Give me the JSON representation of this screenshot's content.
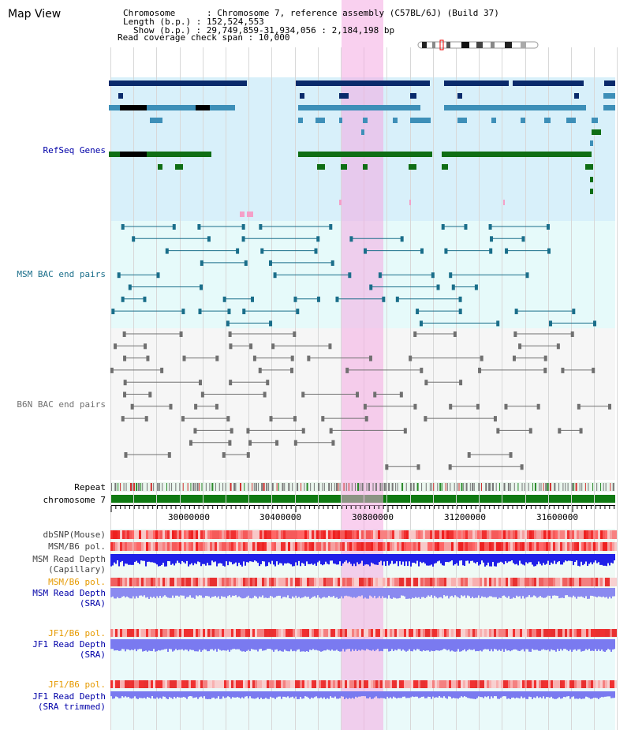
{
  "title": "Map View",
  "header": {
    "chromosome_line": "Chromosome      : Chromosome 7, reference assembly (C57BL/6J) (Build 37)",
    "length_line": "Length (b.p.) : 152,524,553",
    "show_line": "Show (b.p.) : 29,749,859-31,934,056 : 2,184,198 bp",
    "coverage_line": "Read coverage check span : 10,000"
  },
  "tracks": {
    "refseq": "RefSeq Genes",
    "msm_bac": "MSM BAC end pairs",
    "b6n_bac": "B6N BAC end pairs",
    "repeat": "Repeat",
    "chromosome": "chromosome 7",
    "dbsnp": "dbSNP(Mouse)",
    "msm_pol": "MSM/B6 pol.",
    "msm_depth_cap_1": "MSM Read Depth",
    "msm_depth_cap_2": "(Capillary)",
    "msm_pol2": "MSM/B6 pol.",
    "msm_depth_sra_1": "MSM Read Depth",
    "msm_depth_sra_2": "(SRA)",
    "jf1_pol": "JF1/B6 pol.",
    "jf1_depth_1": "JF1 Read Depth",
    "jf1_depth_2": "(SRA)",
    "jf1_pol2": "JF1/B6 pol.",
    "jf1_trim_1": "JF1 Read Depth",
    "jf1_trim_2": "(SRA trimmed)"
  },
  "ruler": {
    "ticks": [
      "30000000",
      "30400000",
      "30800000",
      "31200000",
      "31600000"
    ]
  },
  "colors": {
    "refseq_bg": "#d8f0fa",
    "msm_bg": "#e6fafa",
    "gray_bg": "#f6f6f6",
    "highlight": "#f7c8ee",
    "navy": "#0a2a6b",
    "steel": "#3d8fb8",
    "green": "#0f6e14",
    "teal": "#1a6e8a",
    "gray": "#707070",
    "red": "#f03030",
    "blue": "#2020e8",
    "lavender": "#8a8af0",
    "orange_label": "#e69a00",
    "navy_label": "#0000a8",
    "teal_label": "#1a6e8a",
    "gray_label": "#707070"
  }
}
